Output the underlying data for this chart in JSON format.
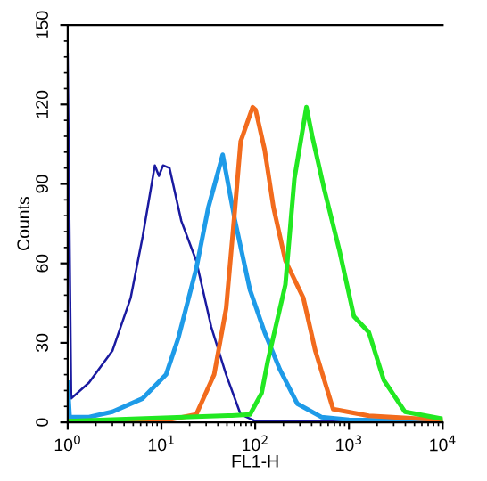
{
  "chart_data": {
    "type": "line",
    "xlabel": "FL1-H",
    "ylabel": "Counts",
    "log": "x",
    "grid": false,
    "xlim": [
      1,
      10000
    ],
    "xticks": [
      {
        "value": 1,
        "label": "10$^{0}$"
      },
      {
        "value": 10,
        "label": "10$^{1}$"
      },
      {
        "value": 100,
        "label": "10$^{2}$"
      },
      {
        "value": 1000,
        "label": "10$^{3}$"
      },
      {
        "value": 10000,
        "label": "10$^{4}$"
      }
    ],
    "ylim": [
      0,
      150
    ],
    "yticks": [
      0,
      30,
      60,
      90,
      120,
      150
    ],
    "series": [
      {
        "color": "#1a1aa0",
        "x": [
          1,
          1.09,
          1.69,
          3.0,
          4.7,
          6.3,
          8.5,
          9.4,
          10.4,
          12.2,
          16.3,
          23.5,
          34,
          49,
          70,
          100,
          1000,
          10000
        ],
        "values": [
          139,
          9,
          15,
          27,
          47,
          70,
          97,
          93,
          97,
          96,
          76,
          61,
          36,
          18,
          3,
          0.5,
          0.5,
          0.5
        ]
      },
      {
        "color": "#1e9be8",
        "x": [
          1,
          1.05,
          1.69,
          3.0,
          6.3,
          11.2,
          15.2,
          23.5,
          31.6,
          45,
          61,
          88,
          126,
          183,
          282,
          508,
          1000,
          10000
        ],
        "values": [
          15,
          2,
          2,
          4,
          9,
          18,
          32,
          58,
          81,
          101,
          76,
          50,
          34,
          20,
          7,
          2,
          1,
          0.5
        ]
      },
      {
        "color": "#f26b1d",
        "x": [
          1,
          12.2,
          23.5,
          36.5,
          49,
          61,
          70,
          94,
          101,
          126,
          157,
          210,
          326,
          438,
          678,
          1630,
          6130,
          10000
        ],
        "values": [
          0.5,
          1,
          3,
          18,
          43,
          81,
          106,
          119,
          118,
          103,
          81,
          61,
          47,
          27,
          5,
          2.5,
          1.3,
          1
        ]
      },
      {
        "color": "#22e822",
        "x": [
          1,
          56.6,
          88,
          117,
          136,
          210,
          262,
          352,
          406,
          545,
          790,
          1130,
          1630,
          2350,
          3950,
          10000
        ],
        "values": [
          0.5,
          2.6,
          3,
          11,
          23,
          52,
          92,
          119,
          108,
          88,
          65,
          40,
          34,
          16,
          4,
          1.3
        ]
      }
    ]
  }
}
